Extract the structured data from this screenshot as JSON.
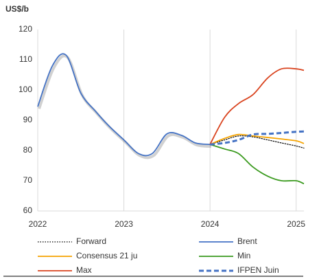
{
  "chart_data": {
    "type": "line",
    "y_label": "US$/b",
    "x": [
      2022.0,
      2022.17,
      2022.33,
      2022.5,
      2022.67,
      2022.83,
      2023.0,
      2023.17,
      2023.33,
      2023.5,
      2023.67,
      2023.83,
      2024.0,
      2024.17,
      2024.33,
      2024.5,
      2024.67,
      2024.83,
      2025.0,
      2025.09
    ],
    "series": [
      {
        "name": "Forward",
        "color": "#000000",
        "dash": "dotted",
        "values": [
          null,
          null,
          null,
          null,
          null,
          null,
          null,
          null,
          null,
          null,
          null,
          null,
          82,
          83.5,
          84.8,
          84.5,
          83.5,
          82.5,
          81.5,
          80.8
        ]
      },
      {
        "name": "Brent",
        "color": "#4472c4",
        "dash": "solid",
        "values": [
          94.5,
          108,
          111.5,
          99,
          93,
          88,
          83.5,
          79,
          79,
          85.5,
          85,
          82.5,
          82,
          null,
          null,
          null,
          null,
          null,
          null,
          null
        ]
      },
      {
        "name": "Consensus 21 ju",
        "color": "#f5a300",
        "dash": "solid",
        "values": [
          null,
          null,
          null,
          null,
          null,
          null,
          null,
          null,
          null,
          null,
          null,
          null,
          82,
          84,
          85.3,
          84.8,
          84.3,
          83.8,
          83.2,
          82.3
        ]
      },
      {
        "name": "Min",
        "color": "#3a9a1e",
        "dash": "solid",
        "values": [
          null,
          null,
          null,
          null,
          null,
          null,
          null,
          null,
          null,
          null,
          null,
          null,
          82,
          80.5,
          79,
          74.5,
          71.5,
          70,
          70,
          69
        ]
      },
      {
        "name": "Max",
        "color": "#d9431e",
        "dash": "solid",
        "values": [
          null,
          null,
          null,
          null,
          null,
          null,
          null,
          null,
          null,
          null,
          null,
          null,
          82,
          91,
          95.5,
          98.5,
          104,
          107,
          107,
          106.5
        ]
      },
      {
        "name": "IFPEN Juin",
        "color": "#4472c4",
        "dash": "dashed",
        "values": [
          null,
          null,
          null,
          null,
          null,
          null,
          null,
          null,
          null,
          null,
          null,
          null,
          82,
          82.5,
          83.5,
          85.3,
          85.5,
          85.8,
          86.2,
          86.3
        ]
      }
    ],
    "xlim": [
      2022,
      2025.09
    ],
    "xticks": [
      2022,
      2023,
      2024,
      2025
    ],
    "ylim": [
      60,
      120
    ],
    "yticks": [
      60,
      70,
      80,
      90,
      100,
      110,
      120
    ],
    "grid": "x"
  }
}
